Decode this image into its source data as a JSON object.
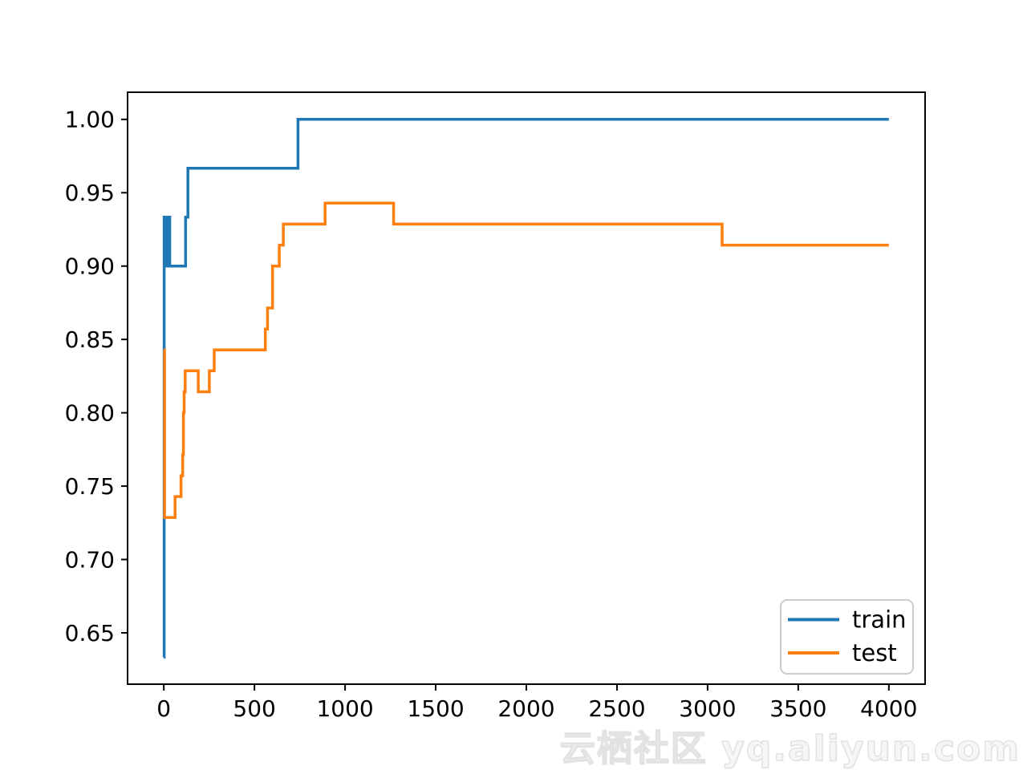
{
  "figure": {
    "background": "#ffffff",
    "axis_color": "#000000",
    "tick_label_color": "#000000"
  },
  "chart_data": {
    "type": "line",
    "draw_style": "steps-post",
    "title": "",
    "xlabel": "",
    "ylabel": "",
    "grid": false,
    "xlim": [
      -200,
      4200
    ],
    "ylim": [
      0.615,
      1.0185
    ],
    "x_ticks": [
      0,
      500,
      1000,
      1500,
      2000,
      2500,
      3000,
      3500,
      4000
    ],
    "x_tick_labels": [
      "0",
      "500",
      "1000",
      "1500",
      "2000",
      "2500",
      "3000",
      "3500",
      "4000"
    ],
    "y_ticks": [
      0.65,
      0.7,
      0.75,
      0.8,
      0.85,
      0.9,
      0.95,
      1.0
    ],
    "y_tick_labels": [
      "0.65",
      "0.70",
      "0.75",
      "0.80",
      "0.85",
      "0.90",
      "0.95",
      "1.00"
    ],
    "legend": {
      "position": "lower right",
      "items": [
        {
          "label": "train",
          "color": "#1f77b4"
        },
        {
          "label": "test",
          "color": "#ff7f0e"
        }
      ]
    },
    "series": [
      {
        "name": "train",
        "color": "#1f77b4",
        "points": [
          [
            0,
            0.6333
          ],
          [
            2,
            0.9333
          ],
          [
            12,
            0.9
          ],
          [
            16,
            0.9333
          ],
          [
            20,
            0.9
          ],
          [
            24,
            0.9333
          ],
          [
            33,
            0.9
          ],
          [
            120,
            0.9333
          ],
          [
            133,
            0.9667
          ],
          [
            740,
            1.0
          ],
          [
            4000,
            1.0
          ]
        ]
      },
      {
        "name": "test",
        "color": "#ff7f0e",
        "points": [
          [
            0,
            0.8429
          ],
          [
            4,
            0.7286
          ],
          [
            62,
            0.7429
          ],
          [
            95,
            0.7571
          ],
          [
            104,
            0.7714
          ],
          [
            108,
            0.8
          ],
          [
            112,
            0.8143
          ],
          [
            118,
            0.8286
          ],
          [
            190,
            0.8143
          ],
          [
            251,
            0.8286
          ],
          [
            278,
            0.8429
          ],
          [
            560,
            0.8571
          ],
          [
            572,
            0.8714
          ],
          [
            600,
            0.9
          ],
          [
            637,
            0.9143
          ],
          [
            659,
            0.9286
          ],
          [
            890,
            0.9429
          ],
          [
            1268,
            0.9286
          ],
          [
            3080,
            0.9143
          ],
          [
            4000,
            0.9143
          ]
        ]
      }
    ]
  },
  "watermark": {
    "text": "云栖社区 yq.aliyun.com"
  }
}
